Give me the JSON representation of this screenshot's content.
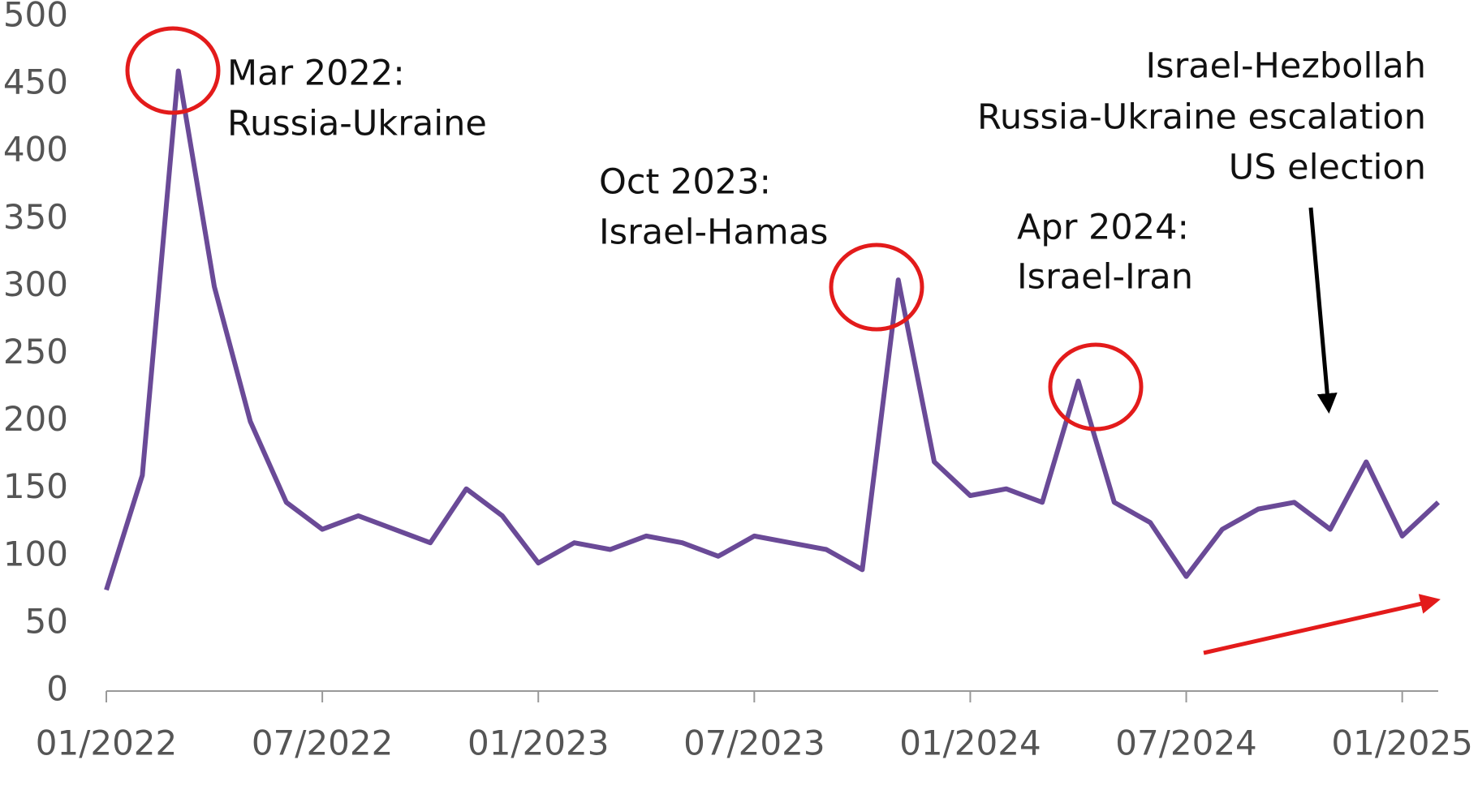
{
  "chart_data": {
    "type": "line",
    "x": [
      "2022-01",
      "2022-02",
      "2022-03",
      "2022-04",
      "2022-05",
      "2022-06",
      "2022-07",
      "2022-08",
      "2022-09",
      "2022-10",
      "2022-11",
      "2022-12",
      "2023-01",
      "2023-02",
      "2023-03",
      "2023-04",
      "2023-05",
      "2023-06",
      "2023-07",
      "2023-08",
      "2023-09",
      "2023-10",
      "2023-11",
      "2023-12",
      "2024-01",
      "2024-02",
      "2024-03",
      "2024-04",
      "2024-05",
      "2024-06",
      "2024-07",
      "2024-08",
      "2024-09",
      "2024-10",
      "2024-11",
      "2024-12",
      "2025-01",
      "2025-02"
    ],
    "series": [
      {
        "color": "#6a4a97",
        "values": [
          75,
          160,
          460,
          300,
          200,
          140,
          120,
          130,
          120,
          110,
          150,
          130,
          95,
          110,
          105,
          115,
          110,
          100,
          115,
          110,
          105,
          90,
          305,
          170,
          145,
          150,
          140,
          230,
          140,
          125,
          85,
          120,
          135,
          140,
          120,
          170,
          115,
          140
        ]
      }
    ],
    "xlim": [
      "2022-01",
      "2025-02"
    ],
    "xticks": [
      {
        "value": "2022-01",
        "label": "01/2022"
      },
      {
        "value": "2022-07",
        "label": "07/2022"
      },
      {
        "value": "2023-01",
        "label": "01/2023"
      },
      {
        "value": "2023-07",
        "label": "07/2023"
      },
      {
        "value": "2024-01",
        "label": "01/2024"
      },
      {
        "value": "2024-07",
        "label": "07/2024"
      },
      {
        "value": "2025-01",
        "label": "01/2025"
      }
    ],
    "ylim": [
      0,
      500
    ],
    "yticks": [
      0,
      50,
      100,
      150,
      200,
      250,
      300,
      350,
      400,
      450,
      500
    ],
    "grid": false,
    "annotations": [
      {
        "lines": [
          "Mar 2022:",
          "Russia-Ukraine"
        ]
      },
      {
        "lines": [
          "Oct 2023:",
          "Israel-Hamas"
        ]
      },
      {
        "lines": [
          "Apr 2024:",
          "Israel-Iran"
        ]
      },
      {
        "lines": [
          "Israel-Hezbollah",
          "Russia-Ukraine escalation",
          "US election"
        ]
      }
    ]
  }
}
